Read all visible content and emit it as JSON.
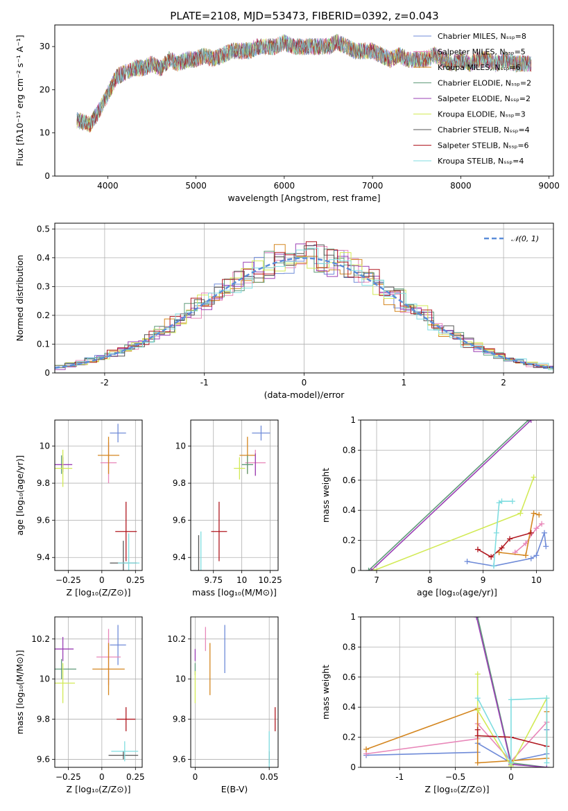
{
  "figure": {
    "title": "PLATE=2108, MJD=53473, FIBERID=0392, z=0.043"
  },
  "chart_data": [
    {
      "id": "spectrum",
      "type": "line",
      "xlabel": "wavelength [Angstrom, rest frame]",
      "ylabel": "Flux [fλ10⁻¹⁷ erg cm⁻² s⁻¹ A⁻¹]",
      "xlim": [
        3400,
        9050
      ],
      "ylim": [
        0,
        35
      ],
      "xticks": [
        4000,
        5000,
        6000,
        7000,
        8000,
        9000
      ],
      "yticks": [
        0,
        10,
        20,
        30
      ],
      "legend_placement": "top-right",
      "series": [
        {
          "name": "Chabrier MILES, Nₛₛₚ=8",
          "color": "#6f8bd8"
        },
        {
          "name": "Salpeter MILES, Nₛₛₚ=5",
          "color": "#e887b9"
        },
        {
          "name": "Kroupa MILES, Nₛₛₚ=6",
          "color": "#d4861f"
        },
        {
          "name": "Chabrier ELODIE, Nₛₛₚ=2",
          "color": "#5f9a79"
        },
        {
          "name": "Salpeter ELODIE, Nₛₛₚ=2",
          "color": "#9a3fb4"
        },
        {
          "name": "Kroupa ELODIE, Nₛₛₚ=3",
          "color": "#d2ea55"
        },
        {
          "name": "Chabrier STELIB, Nₛₛₚ=4",
          "color": "#555555"
        },
        {
          "name": "Salpeter STELIB, Nₛₛₚ=6",
          "color": "#b0171f"
        },
        {
          "name": "Kroupa STELIB, Nₛₛₚ=4",
          "color": "#7fdde0"
        }
      ],
      "continuum": {
        "x": [
          3650,
          3800,
          3900,
          4000,
          4100,
          4200,
          4300,
          4400,
          4500,
          4600,
          4700,
          4800,
          4900,
          5000,
          5100,
          5200,
          5300,
          5400,
          5500,
          5600,
          5700,
          5800,
          5900,
          6000,
          6100,
          6200,
          6300,
          6400,
          6500,
          6600,
          6700,
          6800,
          6900,
          7000,
          7100,
          7200,
          7300,
          7400,
          7500,
          7600,
          7700,
          7800,
          7900,
          8000,
          8100,
          8200,
          8300,
          8400,
          8500,
          8600,
          8700,
          8800
        ],
        "y": [
          13,
          12,
          15,
          19,
          23,
          24,
          25,
          25,
          26,
          25,
          27,
          26,
          27,
          27,
          28,
          27,
          28,
          29,
          29,
          29,
          30,
          30,
          30,
          31,
          30,
          30,
          30,
          30,
          30,
          31,
          30,
          29,
          29,
          29,
          28,
          27,
          28,
          27,
          27,
          27,
          28,
          27,
          26,
          27,
          26,
          27,
          27,
          26,
          27,
          26,
          26,
          26
        ]
      }
    },
    {
      "id": "residuals",
      "type": "area",
      "xlabel": "(data-model)/error",
      "ylabel": "Normed distribution",
      "xlim": [
        -2.5,
        2.5
      ],
      "ylim": [
        0,
        0.52
      ],
      "xticks": [
        -2,
        -1,
        0,
        1,
        2
      ],
      "yticks": [
        0.0,
        0.1,
        0.2,
        0.3,
        0.4,
        0.5
      ],
      "grid": true,
      "legend_placement": "top-right",
      "reference_label": "𝒩(0, 1)",
      "reference_color": "#5b8dd9"
    },
    {
      "id": "age-vs-z",
      "type": "scatter",
      "xlabel": "Z [log₁₀(Z/Z⊙)]",
      "ylabel": "age  [log₁₀(age/yr)]",
      "xlim": [
        -0.35,
        0.3
      ],
      "ylim": [
        9.33,
        10.14
      ],
      "xticks": [
        -0.25,
        0.0,
        0.25
      ],
      "yticks": [
        9.4,
        9.6,
        9.8,
        10.0
      ],
      "grid": true,
      "points": [
        {
          "x": 0.12,
          "y": 10.07,
          "xerr": 0.06,
          "yerr": 0.05,
          "color": "#6f8bd8"
        },
        {
          "x": 0.05,
          "y": 9.91,
          "xerr": 0.06,
          "yerr": 0.11,
          "color": "#e887b9"
        },
        {
          "x": 0.05,
          "y": 9.95,
          "xerr": 0.08,
          "yerr": 0.1,
          "color": "#d4861f"
        },
        {
          "x": -0.3,
          "y": 9.9,
          "xerr": 0.0,
          "yerr": 0.05,
          "color": "#5f9a79"
        },
        {
          "x": -0.29,
          "y": 9.9,
          "xerr": 0.07,
          "yerr": 0.04,
          "color": "#9a3fb4"
        },
        {
          "x": -0.29,
          "y": 9.88,
          "xerr": 0.07,
          "yerr": 0.1,
          "color": "#d2ea55"
        },
        {
          "x": 0.16,
          "y": 9.37,
          "xerr": 0.1,
          "yerr": 0.12,
          "color": "#555555"
        },
        {
          "x": 0.18,
          "y": 9.54,
          "xerr": 0.08,
          "yerr": 0.16,
          "color": "#b0171f"
        },
        {
          "x": 0.2,
          "y": 9.37,
          "xerr": 0.08,
          "yerr": 0.16,
          "color": "#7fdde0"
        }
      ]
    },
    {
      "id": "age-vs-mass",
      "type": "scatter",
      "xlabel": "mass [log₁₀(M/M⊙)]",
      "xlim": [
        9.55,
        10.32
      ],
      "ylim": [
        9.33,
        10.14
      ],
      "xticks": [
        9.75,
        10.0,
        10.25
      ],
      "yticks": [
        9.4,
        9.6,
        9.8,
        10.0
      ],
      "grid": true,
      "points": [
        {
          "x": 10.17,
          "y": 10.07,
          "xerr": 0.08,
          "yerr": 0.04,
          "color": "#6f8bd8"
        },
        {
          "x": 10.12,
          "y": 9.91,
          "xerr": 0.09,
          "yerr": 0.07,
          "color": "#e887b9"
        },
        {
          "x": 10.05,
          "y": 9.95,
          "xerr": 0.07,
          "yerr": 0.1,
          "color": "#d4861f"
        },
        {
          "x": 10.05,
          "y": 9.9,
          "xerr": 0.05,
          "yerr": 0.05,
          "color": "#5f9a79"
        },
        {
          "x": 10.12,
          "y": 9.9,
          "xerr": 0.0,
          "yerr": 0.06,
          "color": "#9a3fb4"
        },
        {
          "x": 9.98,
          "y": 9.88,
          "xerr": 0.05,
          "yerr": 0.06,
          "color": "#d2ea55"
        },
        {
          "x": 9.62,
          "y": 9.37,
          "xerr": 0.0,
          "yerr": 0.15,
          "color": "#555555"
        },
        {
          "x": 9.8,
          "y": 9.54,
          "xerr": 0.07,
          "yerr": 0.16,
          "color": "#b0171f"
        },
        {
          "x": 9.64,
          "y": 9.37,
          "xerr": 0.0,
          "yerr": 0.17,
          "color": "#7fdde0"
        }
      ]
    },
    {
      "id": "weight-vs-age",
      "type": "line",
      "xlabel": "age  [log₁₀(age/yr)]",
      "ylabel": "mass weight",
      "xlim": [
        6.7,
        10.32
      ],
      "ylim": [
        0,
        1.0
      ],
      "xticks": [
        7,
        8,
        9,
        10
      ],
      "yticks": [
        0.0,
        0.2,
        0.4,
        0.6,
        0.8,
        1.0
      ],
      "grid": true,
      "series": [
        {
          "color": "#6f8bd8",
          "x": [
            8.7,
            9.2,
            9.9,
            10.0,
            10.15,
            10.18
          ],
          "y": [
            0.06,
            0.03,
            0.08,
            0.1,
            0.25,
            0.16
          ]
        },
        {
          "color": "#e887b9",
          "x": [
            9.6,
            9.8,
            10.0,
            10.1
          ],
          "y": [
            0.12,
            0.18,
            0.28,
            0.31
          ]
        },
        {
          "color": "#d4861f",
          "x": [
            9.3,
            9.8,
            9.95,
            10.05
          ],
          "y": [
            0.12,
            0.1,
            0.38,
            0.37
          ]
        },
        {
          "color": "#5f9a79",
          "x": [
            6.85,
            9.85
          ],
          "y": [
            0.0,
            1.0
          ]
        },
        {
          "color": "#9a3fb4",
          "x": [
            6.9,
            9.9
          ],
          "y": [
            0.0,
            1.0
          ]
        },
        {
          "color": "#d2ea55",
          "x": [
            6.95,
            9.7,
            9.95
          ],
          "y": [
            0.0,
            0.38,
            0.62
          ]
        },
        {
          "color": "#b0171f",
          "x": [
            8.9,
            9.15,
            9.35,
            9.5,
            9.9
          ],
          "y": [
            0.14,
            0.09,
            0.15,
            0.21,
            0.25
          ]
        },
        {
          "color": "#7fdde0",
          "x": [
            9.2,
            9.25,
            9.3,
            9.35,
            9.55
          ],
          "y": [
            0.03,
            0.25,
            0.45,
            0.46,
            0.46
          ]
        }
      ]
    },
    {
      "id": "mass-vs-z",
      "type": "scatter",
      "xlabel": "Z [log₁₀(Z/Z⊙)]",
      "ylabel": "mass [log₁₀(M/M⊙)]",
      "xlim": [
        -0.35,
        0.3
      ],
      "ylim": [
        9.56,
        10.31
      ],
      "xticks": [
        -0.25,
        0.0,
        0.25
      ],
      "yticks": [
        9.6,
        9.8,
        10.0,
        10.2
      ],
      "grid": true,
      "points": [
        {
          "x": 0.12,
          "y": 10.17,
          "xerr": 0.06,
          "yerr": 0.1,
          "color": "#6f8bd8"
        },
        {
          "x": 0.05,
          "y": 10.11,
          "xerr": 0.09,
          "yerr": 0.14,
          "color": "#e887b9"
        },
        {
          "x": 0.05,
          "y": 10.05,
          "xerr": 0.12,
          "yerr": 0.13,
          "color": "#d4861f"
        },
        {
          "x": -0.3,
          "y": 10.05,
          "xerr": 0.11,
          "yerr": 0.05,
          "color": "#5f9a79"
        },
        {
          "x": -0.29,
          "y": 10.15,
          "xerr": 0.08,
          "yerr": 0.06,
          "color": "#9a3fb4"
        },
        {
          "x": -0.29,
          "y": 9.98,
          "xerr": 0.09,
          "yerr": 0.1,
          "color": "#d2ea55"
        },
        {
          "x": 0.16,
          "y": 9.62,
          "xerr": 0.11,
          "yerr": 0.02,
          "color": "#555555"
        },
        {
          "x": 0.18,
          "y": 9.8,
          "xerr": 0.07,
          "yerr": 0.06,
          "color": "#b0171f"
        },
        {
          "x": 0.17,
          "y": 9.64,
          "xerr": 0.1,
          "yerr": 0.05,
          "color": "#7fdde0"
        }
      ]
    },
    {
      "id": "mass-vs-ebv",
      "type": "scatter",
      "xlabel": "E(B-V)",
      "xlim": [
        -0.003,
        0.056
      ],
      "ylim": [
        9.56,
        10.31
      ],
      "xticks": [
        0.0,
        0.05
      ],
      "yticks": [
        9.6,
        9.8,
        10.0,
        10.2
      ],
      "grid": true,
      "points": [
        {
          "x": 0.02,
          "y": 10.15,
          "xerr": 0.0,
          "yerr": 0.12,
          "color": "#6f8bd8"
        },
        {
          "x": 0.007,
          "y": 10.2,
          "xerr": 0.0,
          "yerr": 0.06,
          "color": "#e887b9"
        },
        {
          "x": 0.01,
          "y": 10.05,
          "xerr": 0.0,
          "yerr": 0.13,
          "color": "#d4861f"
        },
        {
          "x": 0.0,
          "y": 10.05,
          "xerr": 0.0,
          "yerr": 0.03,
          "color": "#5f9a79"
        },
        {
          "x": 0.0,
          "y": 10.12,
          "xerr": 0.0,
          "yerr": 0.03,
          "color": "#9a3fb4"
        },
        {
          "x": 0.0,
          "y": 9.96,
          "xerr": 0.0,
          "yerr": 0.08,
          "color": "#d2ea55"
        },
        {
          "x": 0.05,
          "y": 9.61,
          "xerr": 0.0,
          "yerr": 0.03,
          "color": "#555555"
        },
        {
          "x": 0.054,
          "y": 9.8,
          "xerr": 0.0,
          "yerr": 0.06,
          "color": "#b0171f"
        },
        {
          "x": 0.05,
          "y": 9.65,
          "xerr": 0.0,
          "yerr": 0.09,
          "color": "#7fdde0"
        }
      ]
    },
    {
      "id": "weight-vs-z",
      "type": "line",
      "xlabel": "Z [log₁₀(Z/Z⊙)]",
      "ylabel": "mass weight",
      "xlim": [
        -1.35,
        0.38
      ],
      "ylim": [
        0,
        1.0
      ],
      "xticks": [
        -1.0,
        -0.5,
        0.0
      ],
      "yticks": [
        0.0,
        0.2,
        0.4,
        0.6,
        0.8,
        1.0
      ],
      "grid": true,
      "series": [
        {
          "color": "#6f8bd8",
          "x": [
            -1.3,
            -0.3,
            -0.3,
            0.0,
            0.0,
            0.32,
            0.32
          ],
          "y": [
            0.08,
            0.1,
            0.16,
            0.03,
            0.04,
            0.09,
            0.25
          ]
        },
        {
          "color": "#e887b9",
          "x": [
            -1.3,
            -0.3,
            -0.3,
            0.0,
            0.32
          ],
          "y": [
            0.09,
            0.19,
            0.29,
            0.04,
            0.3
          ]
        },
        {
          "color": "#d4861f",
          "x": [
            -1.3,
            -0.3,
            -0.3,
            0.32,
            0.32
          ],
          "y": [
            0.12,
            0.39,
            0.03,
            0.06,
            0.37
          ]
        },
        {
          "color": "#5f9a79",
          "x": [
            -0.3,
            0.0,
            0.32
          ],
          "y": [
            1.0,
            0.03,
            0.0
          ]
        },
        {
          "color": "#9a3fb4",
          "x": [
            -0.31,
            0.0,
            0.32
          ],
          "y": [
            1.0,
            0.02,
            0.0
          ]
        },
        {
          "color": "#d2ea55",
          "x": [
            -0.3,
            -0.3,
            0.0,
            0.32
          ],
          "y": [
            0.62,
            0.38,
            0.01,
            0.46
          ]
        },
        {
          "color": "#b0171f",
          "x": [
            -0.3,
            -0.3,
            0.0,
            0.32
          ],
          "y": [
            0.25,
            0.21,
            0.2,
            0.14
          ]
        },
        {
          "color": "#7fdde0",
          "x": [
            -0.3,
            0.0,
            0.0,
            0.32,
            0.32
          ],
          "y": [
            0.46,
            0.03,
            0.45,
            0.46,
            0.03
          ]
        }
      ]
    }
  ]
}
